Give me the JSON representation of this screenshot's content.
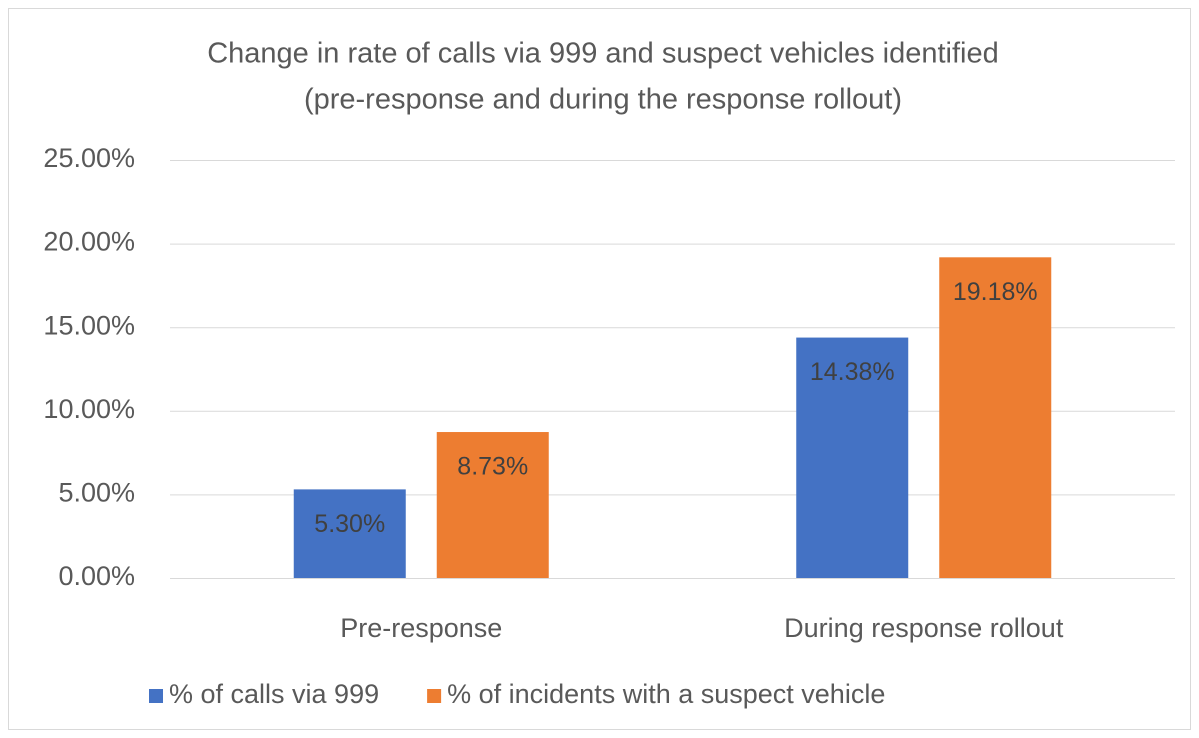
{
  "chart_data": {
    "type": "bar",
    "title": [
      "Change in rate of calls via 999 and suspect vehicles identified",
      "(pre-response and during the response rollout)"
    ],
    "categories": [
      "Pre-response",
      "During response rollout"
    ],
    "series": [
      {
        "name": "% of calls via 999",
        "color": "#4472c4",
        "values": [
          5.3,
          14.38
        ],
        "value_labels": [
          "5.30%",
          "14.38%"
        ]
      },
      {
        "name": "% of incidents with a suspect vehicle",
        "color": "#ed7d31",
        "values": [
          8.73,
          19.18
        ],
        "value_labels": [
          "8.73%",
          "19.18%"
        ]
      }
    ],
    "ylim": [
      0,
      25
    ],
    "yticks": [
      {
        "value": 0,
        "label": "0.00%"
      },
      {
        "value": 5,
        "label": "5.00%"
      },
      {
        "value": 10,
        "label": "10.00%"
      },
      {
        "value": 15,
        "label": "15.00%"
      },
      {
        "value": 20,
        "label": "20.00%"
      },
      {
        "value": 25,
        "label": "25.00%"
      }
    ],
    "grid": true,
    "legend": "bottom"
  }
}
